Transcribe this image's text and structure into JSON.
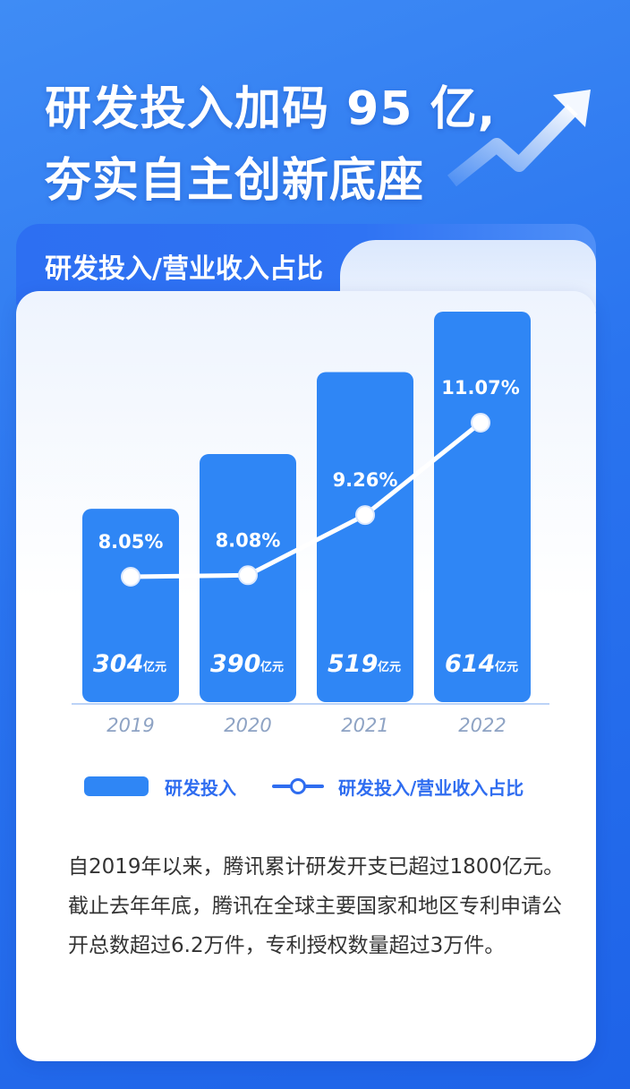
{
  "headline": {
    "line1": "研发投入加码 95 亿,",
    "line2": "夯实自主创新底座"
  },
  "section": {
    "title": "研发投入/营业收入占比"
  },
  "chart_data": {
    "type": "bar",
    "categories": [
      "2019",
      "2020",
      "2021",
      "2022"
    ],
    "series": [
      {
        "name": "研发投入",
        "type": "bar",
        "values": [
          304,
          390,
          519,
          614
        ],
        "labels": [
          "304",
          "390",
          "519",
          "614"
        ],
        "unit": "亿元",
        "color": "#2f86f5"
      },
      {
        "name": "研发投入/营业收入占比",
        "type": "line",
        "values": [
          8.05,
          8.08,
          9.26,
          11.07
        ],
        "labels": [
          "8.05%",
          "8.08%",
          "9.26%",
          "11.07%"
        ],
        "color": "#ffffff"
      }
    ],
    "legend_position": "bottom",
    "grid": false
  },
  "description": "自2019年以来，腾讯累计研发开支已超过1800亿元。截止去年年底，腾讯在全球主要国家和地区专利申请公开总数超过6.2万件，专利授权数量超过3万件。"
}
